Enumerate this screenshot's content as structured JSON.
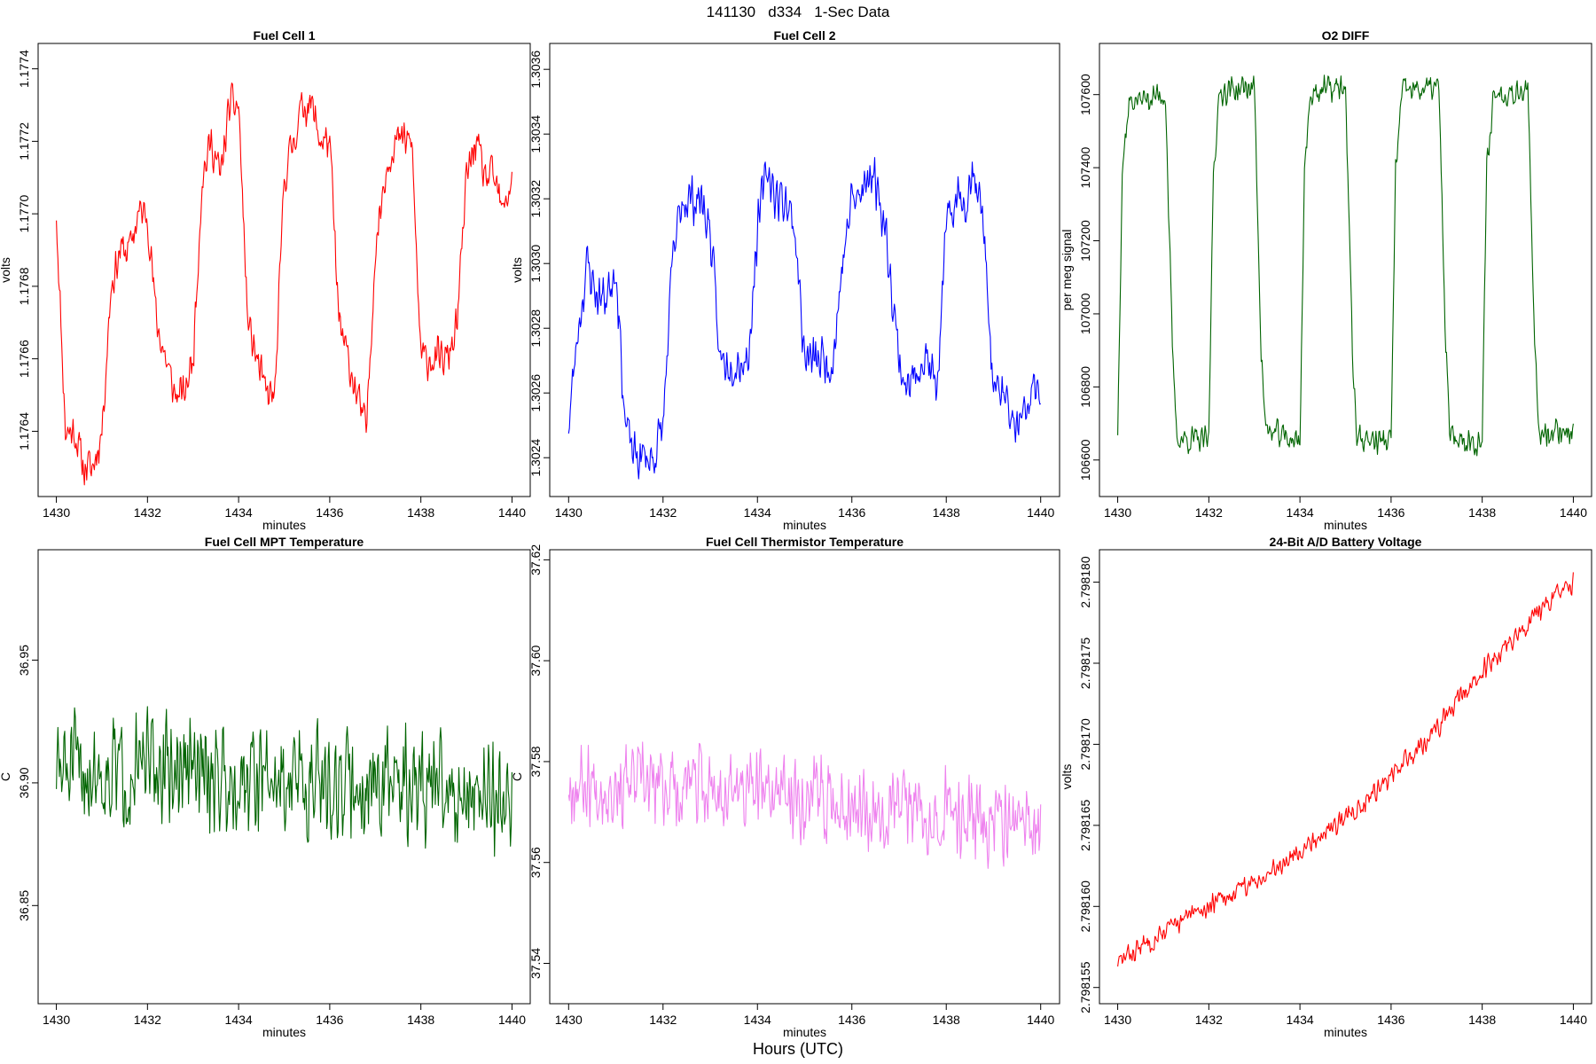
{
  "page": {
    "title": "141130   d334   1-Sec Data",
    "footer_xlabel": "Hours (UTC)"
  },
  "chart_data": [
    {
      "type": "line",
      "title": "Fuel Cell 1",
      "xlabel": "minutes",
      "ylabel": "volts",
      "xlim": [
        1429.6,
        1440.4
      ],
      "ylim": [
        1.17622,
        1.17747
      ],
      "xticks": [
        1430,
        1432,
        1434,
        1436,
        1438,
        1440
      ],
      "xtick_labels": [
        "1430",
        "1432",
        "1434",
        "1436",
        "1438",
        "1440"
      ],
      "yticks": [
        1.1764,
        1.1766,
        1.1768,
        1.177,
        1.1772,
        1.1774
      ],
      "ytick_labels": [
        "1.1764",
        "1.1766",
        "1.1768",
        "1.1770",
        "1.1772",
        "1.1774"
      ],
      "color": "#ff0000",
      "series": [
        {
          "x": [
            1430.0,
            1430.2,
            1430.4,
            1430.6,
            1430.8,
            1431.0,
            1431.2,
            1431.4,
            1431.6,
            1431.8,
            1432.0,
            1432.2,
            1432.4,
            1432.6,
            1432.8,
            1433.0,
            1433.2,
            1433.4,
            1433.6,
            1433.8,
            1434.0,
            1434.2,
            1434.4,
            1434.6,
            1434.8,
            1435.0,
            1435.2,
            1435.4,
            1435.6,
            1435.8,
            1436.0,
            1436.2,
            1436.4,
            1436.6,
            1436.8,
            1437.0,
            1437.2,
            1437.4,
            1437.6,
            1437.8,
            1438.0,
            1438.2,
            1438.4,
            1438.6,
            1438.8,
            1439.0,
            1439.2,
            1439.4,
            1439.6,
            1439.8,
            1440.0
          ],
          "y": [
            1.177,
            1.1764,
            1.1764,
            1.1763,
            1.1763,
            1.1764,
            1.1768,
            1.1769,
            1.1769,
            1.177,
            1.177,
            1.1767,
            1.1766,
            1.1765,
            1.1765,
            1.1766,
            1.1771,
            1.1772,
            1.1771,
            1.1773,
            1.1773,
            1.1767,
            1.1766,
            1.1765,
            1.1765,
            1.1771,
            1.1772,
            1.1773,
            1.1773,
            1.1772,
            1.1772,
            1.1767,
            1.1766,
            1.1765,
            1.1764,
            1.1769,
            1.1771,
            1.1772,
            1.1772,
            1.1772,
            1.1766,
            1.1766,
            1.1766,
            1.1766,
            1.1767,
            1.1771,
            1.1772,
            1.1771,
            1.1771,
            1.177,
            1.1771
          ]
        }
      ],
      "noise": 6.5e-05,
      "seed": 11
    },
    {
      "type": "line",
      "title": "Fuel Cell 2",
      "xlabel": "minutes",
      "ylabel": "volts",
      "xlim": [
        1429.6,
        1440.4
      ],
      "ylim": [
        1.30228,
        1.30368
      ],
      "xticks": [
        1430,
        1432,
        1434,
        1436,
        1438,
        1440
      ],
      "xtick_labels": [
        "1430",
        "1432",
        "1434",
        "1436",
        "1438",
        "1440"
      ],
      "yticks": [
        1.3024,
        1.3026,
        1.3028,
        1.303,
        1.3032,
        1.3034,
        1.3036
      ],
      "ytick_labels": [
        "1.3024",
        "1.3026",
        "1.3028",
        "1.3030",
        "1.3032",
        "1.3034",
        "1.3036"
      ],
      "color": "#0000ff",
      "series": [
        {
          "x": [
            1430.0,
            1430.2,
            1430.4,
            1430.6,
            1430.8,
            1431.0,
            1431.2,
            1431.4,
            1431.6,
            1431.8,
            1432.0,
            1432.2,
            1432.4,
            1432.6,
            1432.8,
            1433.0,
            1433.2,
            1433.4,
            1433.6,
            1433.8,
            1434.0,
            1434.2,
            1434.4,
            1434.6,
            1434.8,
            1435.0,
            1435.2,
            1435.4,
            1435.6,
            1435.8,
            1436.0,
            1436.2,
            1436.4,
            1436.6,
            1436.8,
            1437.0,
            1437.2,
            1437.4,
            1437.6,
            1437.8,
            1438.0,
            1438.2,
            1438.4,
            1438.6,
            1438.8,
            1439.0,
            1439.2,
            1439.4,
            1439.6,
            1439.8,
            1440.0
          ],
          "y": [
            1.3025,
            1.3028,
            1.303,
            1.3029,
            1.3029,
            1.303,
            1.3025,
            1.3024,
            1.3024,
            1.3024,
            1.3025,
            1.303,
            1.3032,
            1.3032,
            1.3032,
            1.3031,
            1.3027,
            1.3027,
            1.3027,
            1.3027,
            1.3031,
            1.3033,
            1.3032,
            1.3032,
            1.3031,
            1.3027,
            1.3027,
            1.3027,
            1.3027,
            1.303,
            1.3032,
            1.3032,
            1.3033,
            1.3032,
            1.303,
            1.3027,
            1.3026,
            1.3027,
            1.3027,
            1.3026,
            1.3031,
            1.3032,
            1.3032,
            1.3033,
            1.3031,
            1.3026,
            1.3026,
            1.3025,
            1.3025,
            1.3026,
            1.3026
          ]
        }
      ],
      "noise": 9e-05,
      "seed": 23
    },
    {
      "type": "line",
      "title": "O2 DIFF",
      "xlabel": "minutes",
      "ylabel": "per meg signal",
      "xlim": [
        1429.6,
        1440.4
      ],
      "ylim": [
        106500,
        107740
      ],
      "xticks": [
        1430,
        1432,
        1434,
        1436,
        1438,
        1440
      ],
      "xtick_labels": [
        "1430",
        "1432",
        "1434",
        "1436",
        "1438",
        "1440"
      ],
      "yticks": [
        106600,
        106800,
        107000,
        107200,
        107400,
        107600
      ],
      "ytick_labels": [
        "106600",
        "106800",
        "107000",
        "107200",
        "107400",
        "107600"
      ],
      "color": "#006400",
      "series": [
        {
          "x": [
            1430.0,
            1430.1,
            1430.25,
            1431.05,
            1431.2,
            1431.3,
            1432.0,
            1432.1,
            1432.25,
            1433.0,
            1433.15,
            1433.25,
            1434.0,
            1434.1,
            1434.25,
            1435.0,
            1435.15,
            1435.25,
            1436.0,
            1436.1,
            1436.25,
            1437.05,
            1437.2,
            1437.3,
            1438.0,
            1438.1,
            1438.25,
            1439.0,
            1439.15,
            1439.25,
            1440.0
          ],
          "y": [
            106680,
            107400,
            107580,
            107600,
            106900,
            106660,
            106650,
            107400,
            107610,
            107620,
            106900,
            106680,
            106650,
            107400,
            107610,
            107620,
            106900,
            106660,
            106650,
            107400,
            107610,
            107620,
            106900,
            106660,
            106650,
            107400,
            107600,
            107620,
            106900,
            106680,
            106680
          ]
        }
      ],
      "noise": 45,
      "seed": 37
    },
    {
      "type": "line",
      "title": "Fuel Cell MPT Temperature",
      "xlabel": "minutes",
      "ylabel": "C",
      "xlim": [
        1429.6,
        1440.4
      ],
      "ylim": [
        36.81,
        36.995
      ],
      "xticks": [
        1430,
        1432,
        1434,
        1436,
        1438,
        1440
      ],
      "xtick_labels": [
        "1430",
        "1432",
        "1434",
        "1436",
        "1438",
        "1440"
      ],
      "yticks": [
        36.85,
        36.9,
        36.95
      ],
      "ytick_labels": [
        "36.85",
        "36.90",
        "36.95"
      ],
      "color": "#006400",
      "series": [
        {
          "x": [
            1430.0,
            1432.0,
            1434.0,
            1436.0,
            1438.0,
            1440.0
          ],
          "y": [
            36.905,
            36.905,
            36.903,
            36.9,
            36.898,
            36.895
          ]
        }
      ],
      "noise": 0.028,
      "seed": 51
    },
    {
      "type": "line",
      "title": "Fuel Cell Thermistor Temperature",
      "xlabel": "minutes",
      "ylabel": "C",
      "xlim": [
        1429.6,
        1440.4
      ],
      "ylim": [
        37.532,
        37.622
      ],
      "xticks": [
        1430,
        1432,
        1434,
        1436,
        1438,
        1440
      ],
      "xtick_labels": [
        "1430",
        "1432",
        "1434",
        "1436",
        "1438",
        "1440"
      ],
      "yticks": [
        37.54,
        37.56,
        37.58,
        37.6,
        37.62
      ],
      "ytick_labels": [
        "37.54",
        "37.56",
        "37.58",
        "37.60",
        "37.62"
      ],
      "color": "#ee82ee",
      "series": [
        {
          "x": [
            1430.0,
            1432.0,
            1434.0,
            1436.0,
            1438.0,
            1440.0
          ],
          "y": [
            37.576,
            37.575,
            37.574,
            37.572,
            37.57,
            37.566
          ]
        }
      ],
      "noise": 0.01,
      "seed": 67
    },
    {
      "type": "line",
      "title": "24-Bit A/D Battery Voltage",
      "xlabel": "minutes",
      "ylabel": "volts",
      "xlim": [
        1429.6,
        1440.4
      ],
      "ylim": [
        2.798154,
        2.798182
      ],
      "xticks": [
        1430,
        1432,
        1434,
        1436,
        1438,
        1440
      ],
      "xtick_labels": [
        "1430",
        "1432",
        "1434",
        "1436",
        "1438",
        "1440"
      ],
      "yticks": [
        2.798155,
        2.79816,
        2.798165,
        2.79817,
        2.798175,
        2.79818
      ],
      "ytick_labels": [
        "2.798155",
        "2.798160",
        "2.798165",
        "2.798170",
        "2.798175",
        "2.798180"
      ],
      "color": "#ff0000",
      "series": [
        {
          "x": [
            1430.0,
            1431.0,
            1432.0,
            1433.0,
            1434.0,
            1435.0,
            1436.0,
            1437.0,
            1438.0,
            1439.0,
            1440.0
          ],
          "y": [
            2.7981565,
            2.7981585,
            2.79816,
            2.7981615,
            2.7981635,
            2.7981655,
            2.798168,
            2.798171,
            2.7981745,
            2.7981775,
            2.79818
          ]
        }
      ],
      "noise": 8e-07,
      "seed": 83
    }
  ]
}
